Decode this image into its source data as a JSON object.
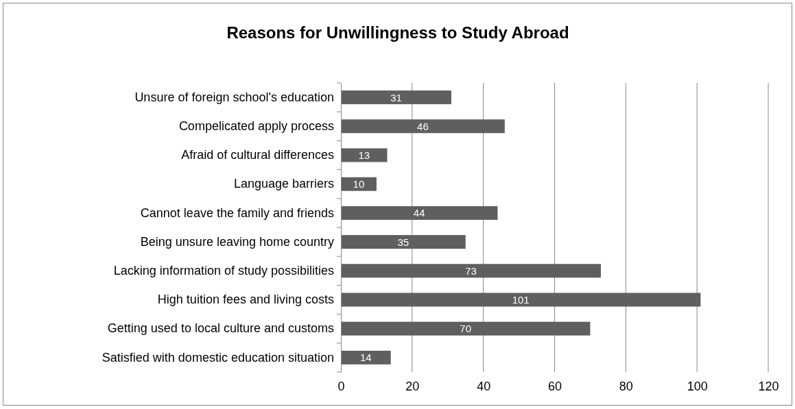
{
  "chart_data": {
    "type": "bar",
    "orientation": "horizontal",
    "title": "Reasons for Unwillingness to Study Abroad",
    "categories": [
      "Unsure of foreign school's education",
      "Compelicated apply process",
      "Afraid of cultural differences",
      "Language barriers",
      "Cannot leave the family and friends",
      "Being unsure leaving home country",
      "Lacking information of study possibilities",
      "High tuition fees and living costs",
      "Getting used to local culture and customs",
      "Satisfied with domestic education situation"
    ],
    "values": [
      31,
      46,
      13,
      10,
      44,
      35,
      73,
      101,
      70,
      14
    ],
    "color": "#5f5f5f",
    "xlim": [
      0,
      120
    ],
    "xticks": [
      0,
      20,
      40,
      60,
      80,
      100,
      120
    ],
    "grid": "x",
    "data_labels": true
  }
}
